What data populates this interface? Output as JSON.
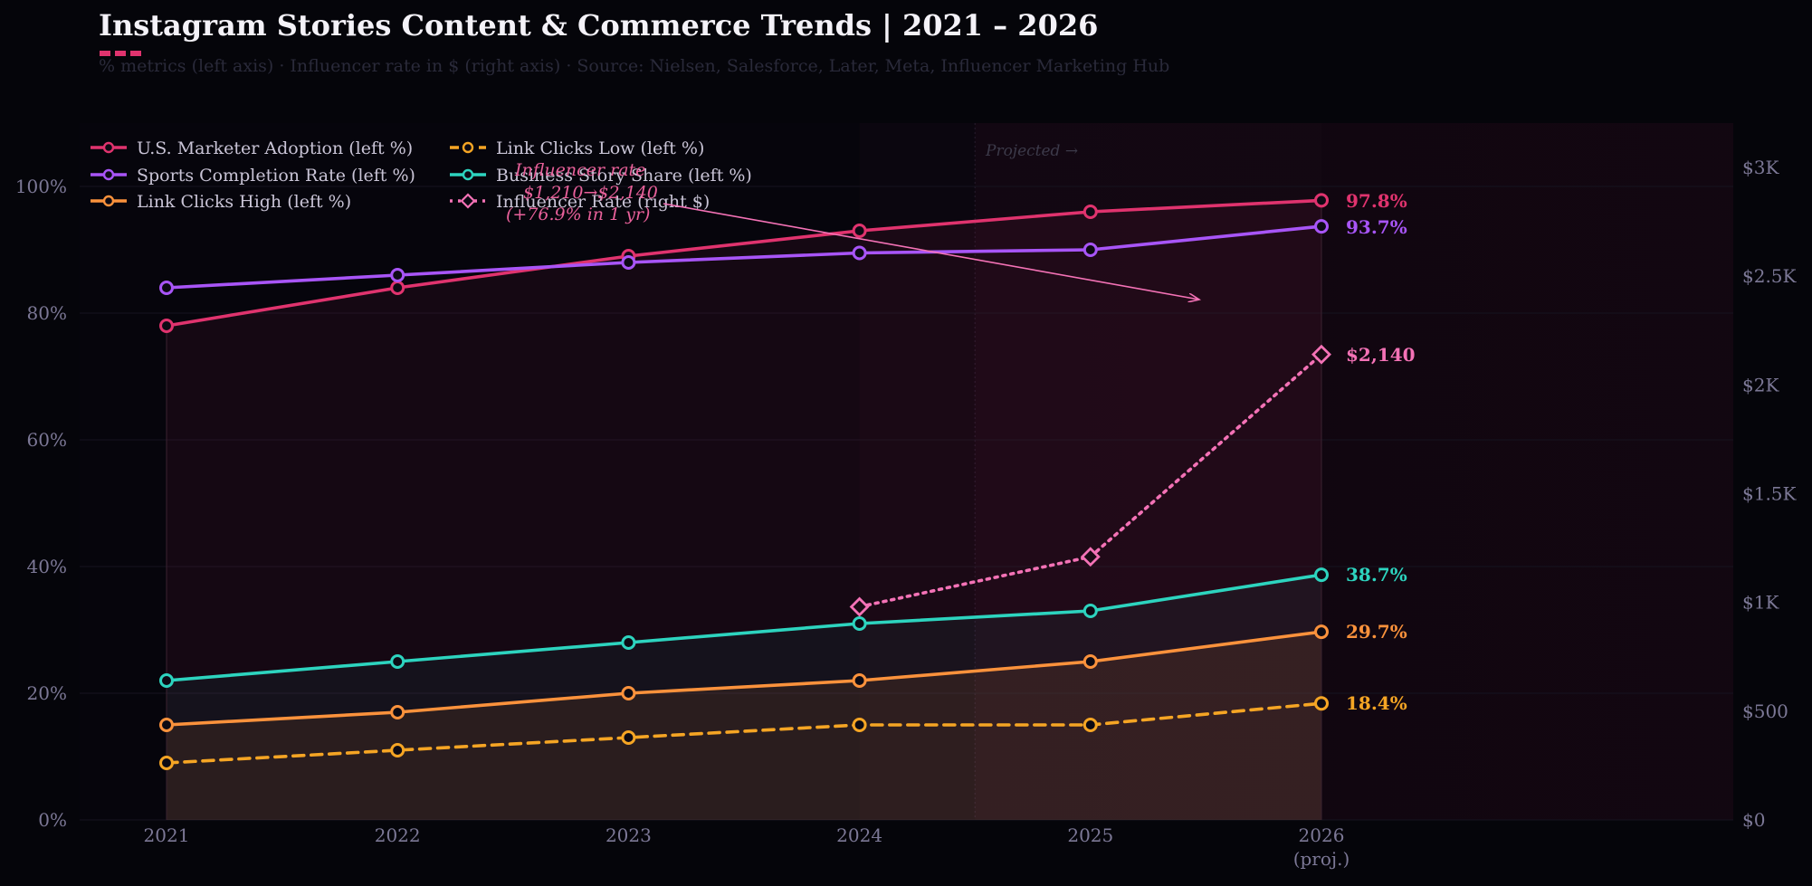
{
  "chart_data": {
    "type": "line",
    "title": "Instagram Stories Content & Commerce Trends  |  2021 – 2026",
    "subtitle": "% metrics (left axis)  ·  Influencer rate in $ (right axis)  ·  Source: Nielsen, Salesforce, Later, Meta, Influencer Marketing Hub",
    "categories": [
      "2021",
      "2022",
      "2023",
      "2024",
      "2025",
      "2026"
    ],
    "category_sublabels": [
      "",
      "",
      "",
      "",
      "",
      "(proj.)"
    ],
    "y_left": {
      "range": [
        0,
        110
      ],
      "ticks": [
        0,
        20,
        40,
        60,
        80,
        100
      ],
      "tick_labels": [
        "0%",
        "20%",
        "40%",
        "60%",
        "80%",
        "100%"
      ]
    },
    "y_right": {
      "range": [
        0,
        3200
      ],
      "ticks": [
        0,
        500,
        1000,
        1500,
        2000,
        2500,
        3000
      ],
      "tick_labels": [
        "$0",
        "$500",
        "$1K",
        "$1.5K",
        "$2K",
        "$2.5K",
        "$3K"
      ]
    },
    "projected_label": "Projected →",
    "grid": true,
    "legend_position": "top-left",
    "series": [
      {
        "name": "U.S. Marketer Adoption (left %)",
        "axis": "left",
        "color": "#e0336e",
        "style": "solid",
        "marker": "circle",
        "values": [
          78,
          84,
          89,
          93,
          96,
          97.8
        ],
        "end_label": "97.8%"
      },
      {
        "name": "Sports Completion Rate (left %)",
        "axis": "left",
        "color": "#a855f7",
        "style": "solid",
        "marker": "circle",
        "values": [
          84,
          86,
          88,
          89.5,
          90,
          93.7
        ],
        "end_label": "93.7%"
      },
      {
        "name": "Link Clicks High (left %)",
        "axis": "left",
        "color": "#fb923c",
        "style": "solid",
        "marker": "circle",
        "values": [
          15,
          17,
          20,
          22,
          25,
          29.7
        ],
        "end_label": "29.7%"
      },
      {
        "name": "Link Clicks Low (left %)",
        "axis": "left",
        "color": "#f5a524",
        "style": "dashed",
        "marker": "circle",
        "values": [
          9,
          11,
          13,
          15,
          15,
          18.4
        ],
        "end_label": "18.4%"
      },
      {
        "name": "Business Story Share (left %)",
        "axis": "left",
        "color": "#2dd4bf",
        "style": "solid",
        "marker": "circle",
        "values": [
          22,
          25,
          28,
          31,
          33,
          38.7
        ],
        "end_label": "38.7%"
      },
      {
        "name": "Influencer Rate (right $)",
        "axis": "right",
        "color": "#f472b6",
        "style": "dotted",
        "marker": "diamond",
        "values": [
          null,
          null,
          null,
          980,
          1210,
          2140
        ],
        "end_label": "$2,140"
      }
    ],
    "annotation": {
      "lines": [
        "Influencer rate",
        "$1,210→$2,140",
        "(+76.9% in 1 yr)"
      ]
    }
  }
}
